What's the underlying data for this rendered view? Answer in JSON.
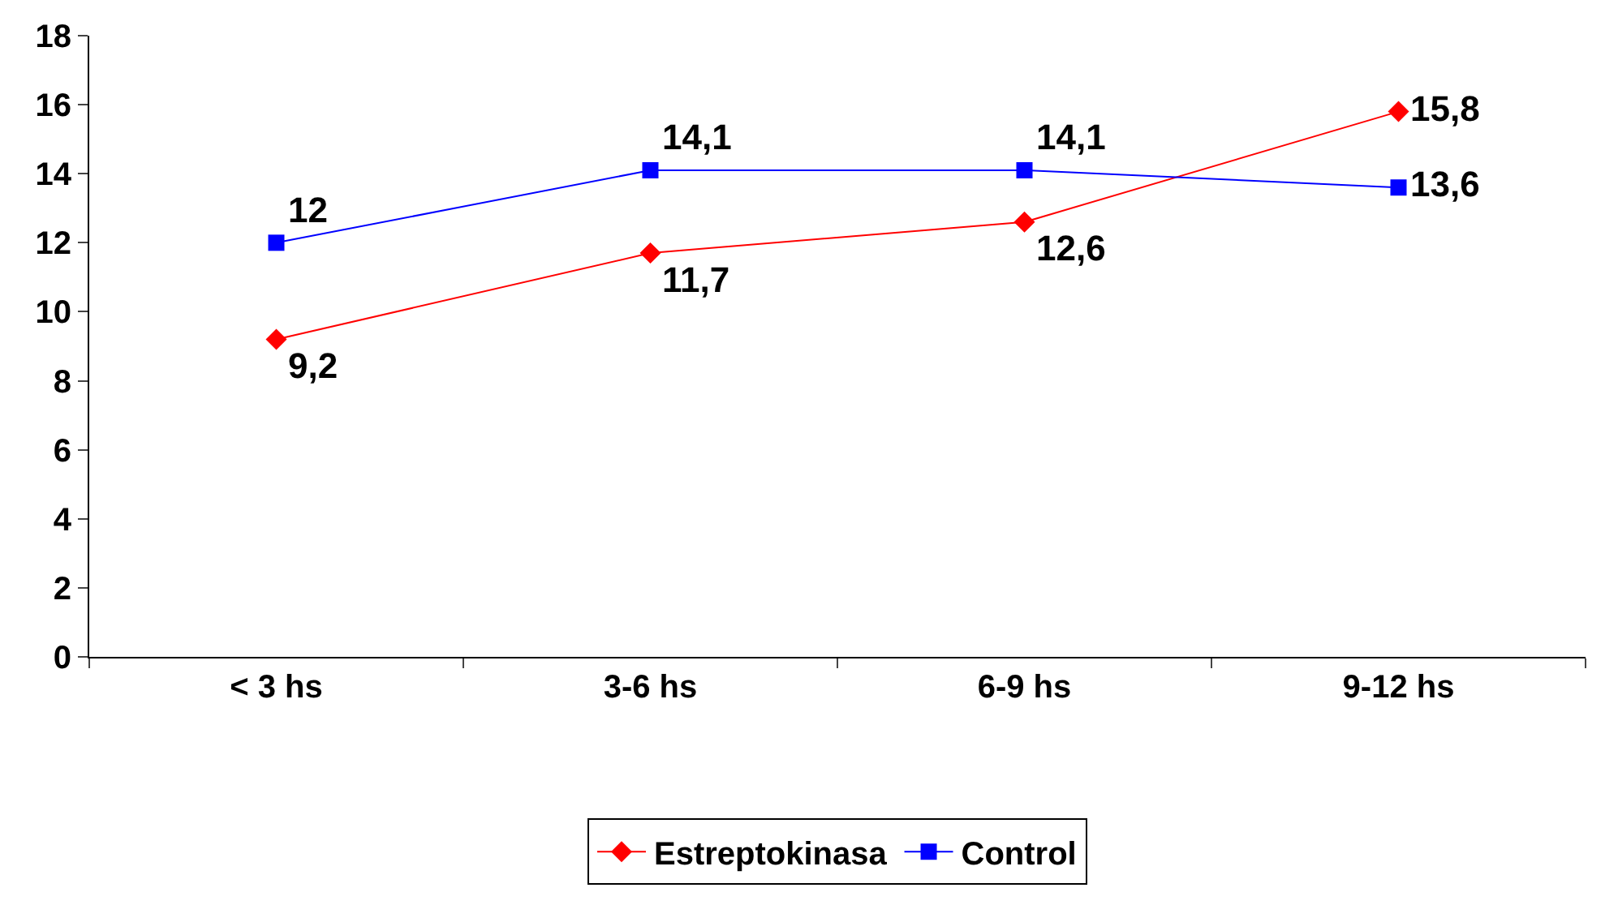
{
  "chart_data": {
    "type": "line",
    "categories": [
      "< 3 hs",
      "3-6 hs",
      "6-9 hs",
      "9-12 hs"
    ],
    "series": [
      {
        "name": "Estreptokinasa",
        "color": "#ff0000",
        "marker": "diamond",
        "values": [
          9.2,
          11.7,
          12.6,
          15.8
        ],
        "value_labels": [
          "9,2",
          "11,7",
          "12,6",
          "15,8"
        ]
      },
      {
        "name": "Control",
        "color": "#0000ff",
        "marker": "square",
        "values": [
          12,
          14.1,
          14.1,
          13.6
        ],
        "value_labels": [
          "12",
          "14,1",
          "14,1",
          "13,6"
        ]
      }
    ],
    "ylim": [
      0,
      18
    ],
    "yticks": [
      0,
      2,
      4,
      6,
      8,
      10,
      12,
      14,
      16,
      18
    ],
    "grid": false,
    "legend": "bottom",
    "line_style": "solid"
  }
}
